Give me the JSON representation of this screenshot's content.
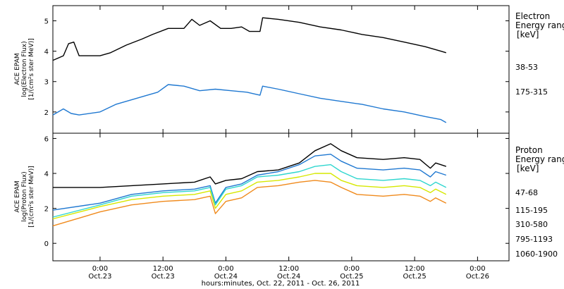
{
  "xaxis": {
    "title": "hours:minutes, Oct. 22, 2011 - Oct. 26, 2011",
    "start_time": "2011-10-22 15:00",
    "end_time": "2011-10-26 06:00",
    "ticks": [
      {
        "time": "2011-10-23 00:00",
        "label1": "0:00",
        "label2": "Oct.23"
      },
      {
        "time": "2011-10-23 12:00",
        "label1": "12:00",
        "label2": "Oct.23"
      },
      {
        "time": "2011-10-24 00:00",
        "label1": "0:00",
        "label2": "Oct.24"
      },
      {
        "time": "2011-10-24 12:00",
        "label1": "12:00",
        "label2": "Oct.24"
      },
      {
        "time": "2011-10-25 00:00",
        "label1": "0:00",
        "label2": "Oct.25"
      },
      {
        "time": "2011-10-25 12:00",
        "label1": "12:00",
        "label2": "Oct.25"
      },
      {
        "time": "2011-10-26 00:00",
        "label1": "0:00",
        "label2": "Oct.26"
      }
    ]
  },
  "chart_data": [
    {
      "type": "line",
      "ylabel": [
        "ACE EPAM",
        "log(Electron Flux)",
        "[1/(cm²s ster MeV)]"
      ],
      "ylim": [
        1.3,
        5.5
      ],
      "yticks": [
        2,
        3,
        4,
        5
      ],
      "legend_title": [
        "Electron",
        "Energy ranges",
        "[keV]"
      ],
      "series": [
        {
          "name": "38-53",
          "color": "#000000",
          "points": [
            [
              "2011-10-22 15:00",
              3.7
            ],
            [
              "2011-10-22 17:00",
              3.85
            ],
            [
              "2011-10-22 18:00",
              4.25
            ],
            [
              "2011-10-22 19:00",
              4.3
            ],
            [
              "2011-10-22 20:00",
              3.85
            ],
            [
              "2011-10-23 00:00",
              3.85
            ],
            [
              "2011-10-23 02:00",
              3.95
            ],
            [
              "2011-10-23 05:00",
              4.2
            ],
            [
              "2011-10-23 08:00",
              4.4
            ],
            [
              "2011-10-23 10:00",
              4.55
            ],
            [
              "2011-10-23 13:00",
              4.75
            ],
            [
              "2011-10-23 16:00",
              4.75
            ],
            [
              "2011-10-23 17:30",
              5.05
            ],
            [
              "2011-10-23 19:00",
              4.85
            ],
            [
              "2011-10-23 21:00",
              5.0
            ],
            [
              "2011-10-23 23:00",
              4.75
            ],
            [
              "2011-10-24 01:00",
              4.75
            ],
            [
              "2011-10-24 03:00",
              4.8
            ],
            [
              "2011-10-24 04:30",
              4.65
            ],
            [
              "2011-10-24 06:30",
              4.65
            ],
            [
              "2011-10-24 07:00",
              5.1
            ],
            [
              "2011-10-24 10:00",
              5.05
            ],
            [
              "2011-10-24 14:00",
              4.95
            ],
            [
              "2011-10-24 18:00",
              4.8
            ],
            [
              "2011-10-24 22:00",
              4.7
            ],
            [
              "2011-10-25 02:00",
              4.55
            ],
            [
              "2011-10-25 06:00",
              4.45
            ],
            [
              "2011-10-25 10:00",
              4.3
            ],
            [
              "2011-10-25 14:00",
              4.15
            ],
            [
              "2011-10-25 17:00",
              4.0
            ],
            [
              "2011-10-25 18:00",
              3.95
            ]
          ]
        },
        {
          "name": "175-315",
          "color": "#1f78d1",
          "points": [
            [
              "2011-10-22 15:00",
              1.9
            ],
            [
              "2011-10-22 17:00",
              2.1
            ],
            [
              "2011-10-22 18:30",
              1.95
            ],
            [
              "2011-10-22 20:00",
              1.9
            ],
            [
              "2011-10-23 00:00",
              2.0
            ],
            [
              "2011-10-23 03:00",
              2.25
            ],
            [
              "2011-10-23 06:00",
              2.4
            ],
            [
              "2011-10-23 09:00",
              2.55
            ],
            [
              "2011-10-23 11:00",
              2.65
            ],
            [
              "2011-10-23 13:00",
              2.9
            ],
            [
              "2011-10-23 16:00",
              2.85
            ],
            [
              "2011-10-23 19:00",
              2.7
            ],
            [
              "2011-10-23 22:00",
              2.75
            ],
            [
              "2011-10-24 01:00",
              2.7
            ],
            [
              "2011-10-24 04:00",
              2.65
            ],
            [
              "2011-10-24 06:30",
              2.55
            ],
            [
              "2011-10-24 07:00",
              2.85
            ],
            [
              "2011-10-24 10:00",
              2.75
            ],
            [
              "2011-10-24 14:00",
              2.6
            ],
            [
              "2011-10-24 18:00",
              2.45
            ],
            [
              "2011-10-24 22:00",
              2.35
            ],
            [
              "2011-10-25 02:00",
              2.25
            ],
            [
              "2011-10-25 06:00",
              2.1
            ],
            [
              "2011-10-25 10:00",
              2.0
            ],
            [
              "2011-10-25 14:00",
              1.85
            ],
            [
              "2011-10-25 17:00",
              1.75
            ],
            [
              "2011-10-25 18:00",
              1.65
            ]
          ]
        }
      ]
    },
    {
      "type": "line",
      "ylabel": [
        "ACE EPAM",
        "log(Proton Flux)",
        "[1/(cm²s ster MeV)]"
      ],
      "ylim": [
        -1.0,
        6.3
      ],
      "yticks": [
        0,
        2,
        4,
        6
      ],
      "legend_title": [
        "Proton",
        "Energy ranges",
        "[keV]"
      ],
      "series": [
        {
          "name": "47-68",
          "color": "#000000",
          "points": [
            [
              "2011-10-22 15:00",
              3.2
            ],
            [
              "2011-10-23 00:00",
              3.2
            ],
            [
              "2011-10-23 06:00",
              3.3
            ],
            [
              "2011-10-23 12:00",
              3.4
            ],
            [
              "2011-10-23 18:00",
              3.5
            ],
            [
              "2011-10-23 21:00",
              3.8
            ],
            [
              "2011-10-23 22:00",
              3.4
            ],
            [
              "2011-10-24 00:00",
              3.6
            ],
            [
              "2011-10-24 03:00",
              3.7
            ],
            [
              "2011-10-24 06:00",
              4.1
            ],
            [
              "2011-10-24 10:00",
              4.2
            ],
            [
              "2011-10-24 14:00",
              4.6
            ],
            [
              "2011-10-24 17:00",
              5.3
            ],
            [
              "2011-10-24 20:00",
              5.7
            ],
            [
              "2011-10-24 22:00",
              5.3
            ],
            [
              "2011-10-25 01:00",
              4.9
            ],
            [
              "2011-10-25 06:00",
              4.8
            ],
            [
              "2011-10-25 10:00",
              4.9
            ],
            [
              "2011-10-25 13:00",
              4.8
            ],
            [
              "2011-10-25 15:00",
              4.3
            ],
            [
              "2011-10-25 16:00",
              4.6
            ],
            [
              "2011-10-25 18:00",
              4.4
            ]
          ]
        },
        {
          "name": "115-195",
          "color": "#1f78d1",
          "points": [
            [
              "2011-10-22 15:00",
              1.9
            ],
            [
              "2011-10-23 00:00",
              2.3
            ],
            [
              "2011-10-23 06:00",
              2.8
            ],
            [
              "2011-10-23 12:00",
              3.0
            ],
            [
              "2011-10-23 18:00",
              3.1
            ],
            [
              "2011-10-23 21:00",
              3.3
            ],
            [
              "2011-10-23 22:00",
              2.3
            ],
            [
              "2011-10-24 00:00",
              3.2
            ],
            [
              "2011-10-24 03:00",
              3.4
            ],
            [
              "2011-10-24 06:00",
              3.9
            ],
            [
              "2011-10-24 10:00",
              4.1
            ],
            [
              "2011-10-24 14:00",
              4.5
            ],
            [
              "2011-10-24 17:00",
              5.0
            ],
            [
              "2011-10-24 20:00",
              5.1
            ],
            [
              "2011-10-24 22:00",
              4.7
            ],
            [
              "2011-10-25 01:00",
              4.3
            ],
            [
              "2011-10-25 06:00",
              4.2
            ],
            [
              "2011-10-25 10:00",
              4.3
            ],
            [
              "2011-10-25 13:00",
              4.2
            ],
            [
              "2011-10-25 15:00",
              3.8
            ],
            [
              "2011-10-25 16:00",
              4.1
            ],
            [
              "2011-10-25 18:00",
              3.9
            ]
          ]
        },
        {
          "name": "310-580",
          "color": "#2fd6cf",
          "points": [
            [
              "2011-10-22 15:00",
              1.5
            ],
            [
              "2011-10-23 00:00",
              2.2
            ],
            [
              "2011-10-23 06:00",
              2.7
            ],
            [
              "2011-10-23 12:00",
              2.9
            ],
            [
              "2011-10-23 18:00",
              3.0
            ],
            [
              "2011-10-23 21:00",
              3.2
            ],
            [
              "2011-10-23 22:00",
              2.2
            ],
            [
              "2011-10-24 00:00",
              3.1
            ],
            [
              "2011-10-24 03:00",
              3.3
            ],
            [
              "2011-10-24 06:00",
              3.8
            ],
            [
              "2011-10-24 10:00",
              3.9
            ],
            [
              "2011-10-24 14:00",
              4.1
            ],
            [
              "2011-10-24 17:00",
              4.4
            ],
            [
              "2011-10-24 20:00",
              4.5
            ],
            [
              "2011-10-24 22:00",
              4.1
            ],
            [
              "2011-10-25 01:00",
              3.7
            ],
            [
              "2011-10-25 06:00",
              3.6
            ],
            [
              "2011-10-25 10:00",
              3.7
            ],
            [
              "2011-10-25 13:00",
              3.6
            ],
            [
              "2011-10-25 15:00",
              3.3
            ],
            [
              "2011-10-25 16:00",
              3.5
            ],
            [
              "2011-10-25 18:00",
              3.2
            ]
          ]
        },
        {
          "name": "795-1193",
          "color": "#d6e800",
          "points": [
            [
              "2011-10-22 15:00",
              1.4
            ],
            [
              "2011-10-23 00:00",
              2.1
            ],
            [
              "2011-10-23 06:00",
              2.5
            ],
            [
              "2011-10-23 12:00",
              2.7
            ],
            [
              "2011-10-23 18:00",
              2.8
            ],
            [
              "2011-10-23 21:00",
              3.0
            ],
            [
              "2011-10-23 22:00",
              2.0
            ],
            [
              "2011-10-24 00:00",
              2.8
            ],
            [
              "2011-10-24 03:00",
              3.0
            ],
            [
              "2011-10-24 06:00",
              3.5
            ],
            [
              "2011-10-24 10:00",
              3.6
            ],
            [
              "2011-10-24 14:00",
              3.8
            ],
            [
              "2011-10-24 17:00",
              4.0
            ],
            [
              "2011-10-24 20:00",
              4.0
            ],
            [
              "2011-10-24 22:00",
              3.6
            ],
            [
              "2011-10-25 01:00",
              3.3
            ],
            [
              "2011-10-25 06:00",
              3.2
            ],
            [
              "2011-10-25 10:00",
              3.3
            ],
            [
              "2011-10-25 13:00",
              3.2
            ],
            [
              "2011-10-25 15:00",
              2.9
            ],
            [
              "2011-10-25 16:00",
              3.1
            ],
            [
              "2011-10-25 18:00",
              2.8
            ]
          ]
        },
        {
          "name": "1060-1900",
          "color": "#f08a1c",
          "points": [
            [
              "2011-10-22 15:00",
              1.0
            ],
            [
              "2011-10-23 00:00",
              1.8
            ],
            [
              "2011-10-23 06:00",
              2.2
            ],
            [
              "2011-10-23 12:00",
              2.4
            ],
            [
              "2011-10-23 18:00",
              2.5
            ],
            [
              "2011-10-23 21:00",
              2.7
            ],
            [
              "2011-10-23 22:00",
              1.7
            ],
            [
              "2011-10-24 00:00",
              2.4
            ],
            [
              "2011-10-24 03:00",
              2.6
            ],
            [
              "2011-10-24 06:00",
              3.2
            ],
            [
              "2011-10-24 10:00",
              3.3
            ],
            [
              "2011-10-24 14:00",
              3.5
            ],
            [
              "2011-10-24 17:00",
              3.6
            ],
            [
              "2011-10-24 20:00",
              3.5
            ],
            [
              "2011-10-24 22:00",
              3.2
            ],
            [
              "2011-10-25 01:00",
              2.8
            ],
            [
              "2011-10-25 06:00",
              2.7
            ],
            [
              "2011-10-25 10:00",
              2.8
            ],
            [
              "2011-10-25 13:00",
              2.7
            ],
            [
              "2011-10-25 15:00",
              2.4
            ],
            [
              "2011-10-25 16:00",
              2.6
            ],
            [
              "2011-10-25 18:00",
              2.3
            ]
          ]
        }
      ]
    }
  ]
}
